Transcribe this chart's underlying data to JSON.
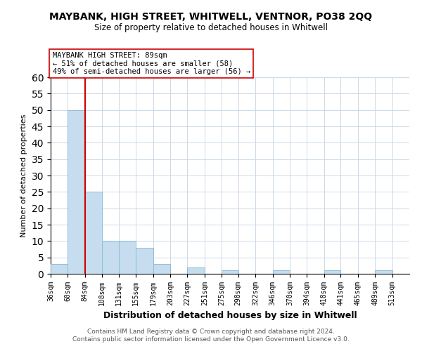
{
  "title": "MAYBANK, HIGH STREET, WHITWELL, VENTNOR, PO38 2QQ",
  "subtitle": "Size of property relative to detached houses in Whitwell",
  "xlabel": "Distribution of detached houses by size in Whitwell",
  "ylabel": "Number of detached properties",
  "bin_labels": [
    "36sqm",
    "60sqm",
    "84sqm",
    "108sqm",
    "131sqm",
    "155sqm",
    "179sqm",
    "203sqm",
    "227sqm",
    "251sqm",
    "275sqm",
    "298sqm",
    "322sqm",
    "346sqm",
    "370sqm",
    "394sqm",
    "418sqm",
    "441sqm",
    "465sqm",
    "489sqm",
    "513sqm"
  ],
  "bar_values": [
    3,
    50,
    25,
    10,
    10,
    8,
    3,
    0,
    2,
    0,
    1,
    0,
    0,
    1,
    0,
    0,
    1,
    0,
    0,
    1,
    0
  ],
  "bar_color": "#c5ddef",
  "bar_edge_color": "#91bdd6",
  "vline_x": 84,
  "vline_color": "#cc0000",
  "ylim": [
    0,
    60
  ],
  "yticks": [
    0,
    5,
    10,
    15,
    20,
    25,
    30,
    35,
    40,
    45,
    50,
    55,
    60
  ],
  "annotation_title": "MAYBANK HIGH STREET: 89sqm",
  "annotation_line1": "← 51% of detached houses are smaller (58)",
  "annotation_line2": "49% of semi-detached houses are larger (56) →",
  "footer_line1": "Contains HM Land Registry data © Crown copyright and database right 2024.",
  "footer_line2": "Contains public sector information licensed under the Open Government Licence v3.0.",
  "bin_edges": [
    36,
    60,
    84,
    108,
    131,
    155,
    179,
    203,
    227,
    251,
    275,
    298,
    322,
    346,
    370,
    394,
    418,
    441,
    465,
    489,
    513,
    537
  ]
}
